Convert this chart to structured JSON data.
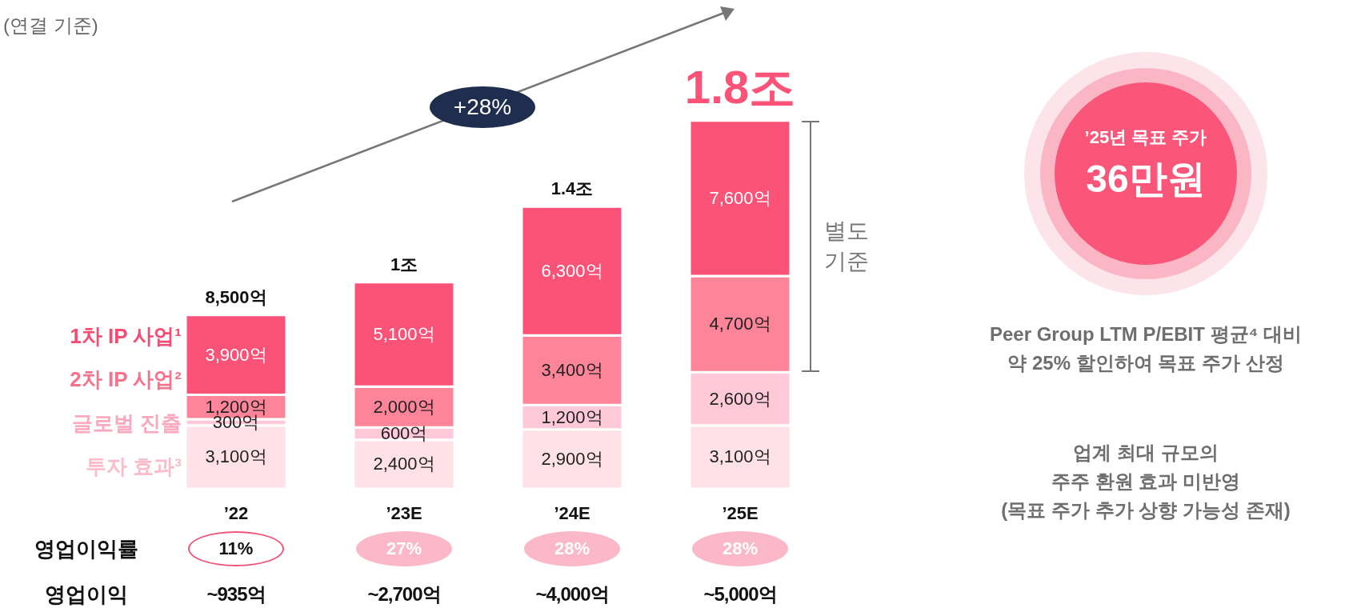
{
  "chart_data": {
    "type": "bar",
    "subtitle": "(연결 기준)",
    "categories": [
      "’22",
      "’23E",
      "’24E",
      "’25E"
    ],
    "stacked": true,
    "series": [
      {
        "name": "투자 효과³",
        "color": "#ffe1e8",
        "values": [
          3100,
          2400,
          2900,
          3100
        ],
        "value_labels": [
          "3,100억",
          "2,400억",
          "2,900억",
          "3,100억"
        ]
      },
      {
        "name": "글로벌 진출",
        "color": "#ffc9d9",
        "values": [
          300,
          600,
          1200,
          2600
        ],
        "value_labels": [
          "300억",
          "600억",
          "1,200억",
          "2,600억"
        ]
      },
      {
        "name": "2차 IP 사업²",
        "color": "#fd8499",
        "values": [
          1200,
          2000,
          3400,
          4700
        ],
        "value_labels": [
          "1,200억",
          "2,000억",
          "3,400억",
          "4,700억"
        ]
      },
      {
        "name": "1차 IP 사업¹",
        "color": "#fb5278",
        "values": [
          3900,
          5100,
          6300,
          7600
        ],
        "value_labels": [
          "3,900억",
          "5,100억",
          "6,300억",
          "7,600억"
        ]
      }
    ],
    "annotations": [
      {
        "text": "8,500억",
        "x": "’22",
        "y": 8500
      },
      {
        "text": "1조",
        "x": "’23E",
        "y": 10100
      },
      {
        "text": "1.4조",
        "x": "’24E",
        "y": 13800
      },
      {
        "text": "1.8조",
        "x": "’25E",
        "y": 18000
      },
      "+28%",
      "별도\n기준",
      "영업이익률",
      "11%",
      "27%",
      "28%",
      "28%",
      "영업이익",
      "~935억",
      "~2,700억",
      "~4,000억",
      "~5,000억",
      "’25년 목표 주가",
      "36만원",
      "Peer Group LTM P/EBIT 평균⁴ 대비\n약 25% 할인하여 목표 주가 산정",
      "업계 최대 규모의\n주주 환원 효과 미반영\n(목표 주가 추가 상향 가능성 존재)"
    ]
  }
}
